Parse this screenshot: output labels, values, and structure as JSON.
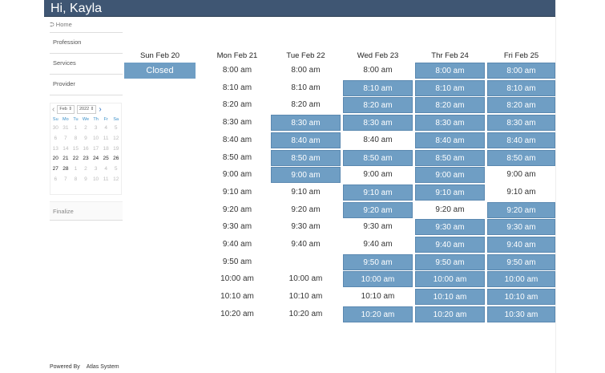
{
  "header": {
    "greeting": "Hi, Kayla"
  },
  "sidebar": {
    "home": "Home",
    "items": [
      "Profession",
      "Services",
      "Provider"
    ],
    "finalize": "Finalize"
  },
  "calendar": {
    "month": "Feb",
    "year": "2022",
    "weekdays": [
      "Su",
      "Mo",
      "Tu",
      "We",
      "Th",
      "Fr",
      "Sa"
    ],
    "weeks": [
      [
        "30",
        "31",
        "1",
        "2",
        "3",
        "4",
        "5"
      ],
      [
        "6",
        "7",
        "8",
        "9",
        "10",
        "11",
        "12"
      ],
      [
        "13",
        "14",
        "15",
        "16",
        "17",
        "18",
        "19"
      ],
      [
        "20",
        "21",
        "22",
        "23",
        "24",
        "25",
        "26"
      ],
      [
        "27",
        "28",
        "1",
        "2",
        "3",
        "4",
        "5"
      ],
      [
        "6",
        "7",
        "8",
        "9",
        "10",
        "11",
        "12"
      ]
    ],
    "current_weeks": [
      3,
      4
    ],
    "current_count_last": 2
  },
  "schedule": {
    "days": [
      {
        "label": "Sun Feb 20",
        "closed": "Closed",
        "slots": []
      },
      {
        "label": "Mon Feb 21",
        "slots": [
          [
            "8:00 am",
            0
          ],
          [
            "8:10 am",
            0
          ],
          [
            "8:20 am",
            0
          ],
          [
            "8:30 am",
            0
          ],
          [
            "8:40 am",
            0
          ],
          [
            "8:50 am",
            0
          ],
          [
            "9:00 am",
            0
          ],
          [
            "9:10 am",
            0
          ],
          [
            "9:20 am",
            0
          ],
          [
            "9:30 am",
            0
          ],
          [
            "9:40 am",
            0
          ],
          [
            "9:50 am",
            0
          ],
          [
            "10:00 am",
            0
          ],
          [
            "10:10 am",
            0
          ],
          [
            "10:20 am",
            0
          ]
        ]
      },
      {
        "label": "Tue Feb 22",
        "slots": [
          [
            "8:00 am",
            0
          ],
          [
            "8:10 am",
            0
          ],
          [
            "8:20 am",
            0
          ],
          [
            "8:30 am",
            1
          ],
          [
            "8:40 am",
            1
          ],
          [
            "8:50 am",
            1
          ],
          [
            "9:00 am",
            1
          ],
          [
            "9:10 am",
            0
          ],
          [
            "9:20 am",
            0
          ],
          [
            "9:30 am",
            0
          ],
          [
            "9:40 am",
            0
          ],
          null,
          [
            "10:00 am",
            0
          ],
          [
            "10:10 am",
            0
          ],
          [
            "10:20 am",
            0
          ]
        ]
      },
      {
        "label": "Wed Feb 23",
        "slots": [
          [
            "8:00 am",
            0
          ],
          [
            "8:10 am",
            1
          ],
          [
            "8:20 am",
            1
          ],
          [
            "8:30 am",
            1
          ],
          [
            "8:40 am",
            0
          ],
          [
            "8:50 am",
            1
          ],
          [
            "9:00 am",
            0
          ],
          [
            "9:10 am",
            1
          ],
          [
            "9:20 am",
            1
          ],
          [
            "9:30 am",
            0
          ],
          [
            "9:40 am",
            0
          ],
          [
            "9:50 am",
            1
          ],
          [
            "10:00 am",
            1
          ],
          [
            "10:10 am",
            0
          ],
          [
            "10:20 am",
            1
          ]
        ]
      },
      {
        "label": "Thr Feb 24",
        "slots": [
          [
            "8:00 am",
            1
          ],
          [
            "8:10 am",
            1
          ],
          [
            "8:20 am",
            1
          ],
          [
            "8:30 am",
            1
          ],
          [
            "8:40 am",
            1
          ],
          [
            "8:50 am",
            1
          ],
          [
            "9:00 am",
            1
          ],
          [
            "9:10 am",
            1
          ],
          [
            "9:20 am",
            0
          ],
          [
            "9:30 am",
            1
          ],
          [
            "9:40 am",
            1
          ],
          [
            "9:50 am",
            1
          ],
          [
            "10:00 am",
            1
          ],
          [
            "10:10 am",
            1
          ],
          [
            "10:20 am",
            1
          ]
        ]
      },
      {
        "label": "Fri Feb 25",
        "slots": [
          [
            "8:00 am",
            1
          ],
          [
            "8:10 am",
            1
          ],
          [
            "8:20 am",
            1
          ],
          [
            "8:30 am",
            1
          ],
          [
            "8:40 am",
            1
          ],
          [
            "8:50 am",
            1
          ],
          [
            "9:00 am",
            0
          ],
          [
            "9:10 am",
            0
          ],
          [
            "9:20 am",
            1
          ],
          [
            "9:30 am",
            1
          ],
          [
            "9:40 am",
            1
          ],
          [
            "9:50 am",
            1
          ],
          [
            "10:00 am",
            1
          ],
          [
            "10:10 am",
            1
          ],
          [
            "10:30 am",
            1
          ]
        ]
      }
    ]
  },
  "footer": {
    "powered": "Powered By",
    "brand": "Atlas System"
  },
  "colors": {
    "header": "#3f5673",
    "slot_available": "#6f9ec4"
  }
}
